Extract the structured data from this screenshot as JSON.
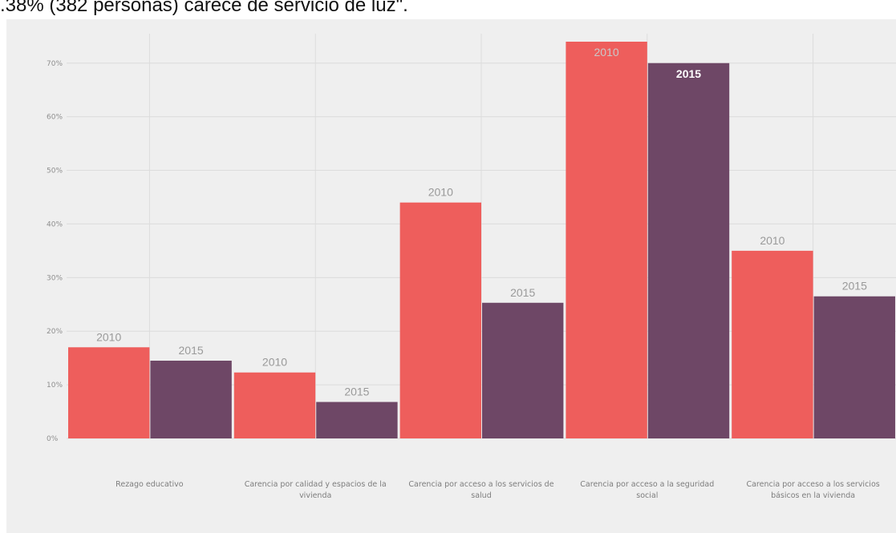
{
  "caption": ".38% (382 personas) carece de servicio de luz\".",
  "chart_data": {
    "type": "bar",
    "categories": [
      [
        "Rezago educativo"
      ],
      [
        "Carencia por calidad y espacios de la",
        "vivienda"
      ],
      [
        "Carencia por acceso a los servicios de",
        "salud"
      ],
      [
        "Carencia por acceso a la seguridad",
        "social"
      ],
      [
        "Carencia por acceso a los servicios",
        "básicos en la vivienda"
      ]
    ],
    "series": [
      {
        "values": [
          17,
          12.3,
          44,
          74,
          35
        ],
        "labels": [
          "2010",
          "2010",
          "2010",
          "2010",
          "2010"
        ],
        "color": "#ee5e5c"
      },
      {
        "values": [
          14.5,
          6.8,
          25.3,
          70,
          26.5
        ],
        "labels": [
          "2015",
          "2015",
          "2015",
          "2015",
          "2015"
        ],
        "color": "#6e4766"
      }
    ],
    "yticks": [
      "0%",
      "10%",
      "20%",
      "30%",
      "40%",
      "50%",
      "60%",
      "70%"
    ],
    "ylim": [
      0,
      74
    ],
    "grid": true,
    "background": "#efefef",
    "gridline_color": "#dcdcdc",
    "label_color": "#9a9a9a",
    "label_color_inside": "#ffffff"
  }
}
